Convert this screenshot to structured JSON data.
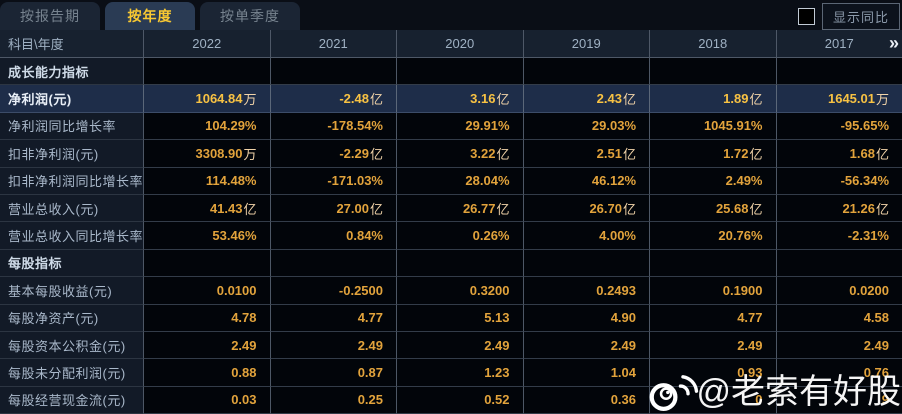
{
  "tabs": [
    {
      "label": "按报告期",
      "active": false
    },
    {
      "label": "按年度",
      "active": true
    },
    {
      "label": "按单季度",
      "active": false
    }
  ],
  "controls": {
    "show_yoy_label": "显示同比",
    "checkbox_checked": false
  },
  "table": {
    "header": {
      "subject": "科目\\年度",
      "years": [
        "2022",
        "2021",
        "2020",
        "2019",
        "2018",
        "2017"
      ],
      "more_icon": "»"
    },
    "rows": [
      {
        "type": "section",
        "label": "成长能力指标"
      },
      {
        "type": "data",
        "highlight": true,
        "label": "净利润(元)",
        "values": [
          "1064.84万",
          "-2.48亿",
          "3.16亿",
          "2.43亿",
          "1.89亿",
          "1645.01万"
        ]
      },
      {
        "type": "data",
        "label": "净利润同比增长率",
        "values": [
          "104.29%",
          "-178.54%",
          "29.91%",
          "29.03%",
          "1045.91%",
          "-95.65%"
        ]
      },
      {
        "type": "data",
        "label": "扣非净利润(元)",
        "values": [
          "3308.90万",
          "-2.29亿",
          "3.22亿",
          "2.51亿",
          "1.72亿",
          "1.68亿"
        ]
      },
      {
        "type": "data",
        "label": "扣非净利润同比增长率",
        "values": [
          "114.48%",
          "-171.03%",
          "28.04%",
          "46.12%",
          "2.49%",
          "-56.34%"
        ]
      },
      {
        "type": "data",
        "label": "营业总收入(元)",
        "values": [
          "41.43亿",
          "27.00亿",
          "26.77亿",
          "26.70亿",
          "25.68亿",
          "21.26亿"
        ]
      },
      {
        "type": "data",
        "label": "营业总收入同比增长率",
        "values": [
          "53.46%",
          "0.84%",
          "0.26%",
          "4.00%",
          "20.76%",
          "-2.31%"
        ]
      },
      {
        "type": "section",
        "label": "每股指标"
      },
      {
        "type": "data",
        "label": "基本每股收益(元)",
        "values": [
          "0.0100",
          "-0.2500",
          "0.3200",
          "0.2493",
          "0.1900",
          "0.0200"
        ]
      },
      {
        "type": "data",
        "label": "每股净资产(元)",
        "values": [
          "4.78",
          "4.77",
          "5.13",
          "4.90",
          "4.77",
          "4.58"
        ]
      },
      {
        "type": "data",
        "label": "每股资本公积金(元)",
        "values": [
          "2.49",
          "2.49",
          "2.49",
          "2.49",
          "2.49",
          "2.49"
        ]
      },
      {
        "type": "data",
        "label": "每股未分配利润(元)",
        "values": [
          "0.88",
          "0.87",
          "1.23",
          "1.04",
          "0.93",
          "0.76"
        ]
      },
      {
        "type": "data",
        "label": "每股经营现金流(元)",
        "values": [
          "0.03",
          "0.25",
          "0.52",
          "0.36",
          "0",
          "9"
        ]
      }
    ]
  },
  "watermark": {
    "handle": "@老索有好股",
    "icon": "weibo-icon"
  },
  "colors": {
    "active_tab_text": "#f8c832",
    "value_text": "#e2a33c",
    "highlight_row_bg": "#1e2d49",
    "label_column_bg": "#121a27",
    "header_row_bg": "#17212f"
  }
}
